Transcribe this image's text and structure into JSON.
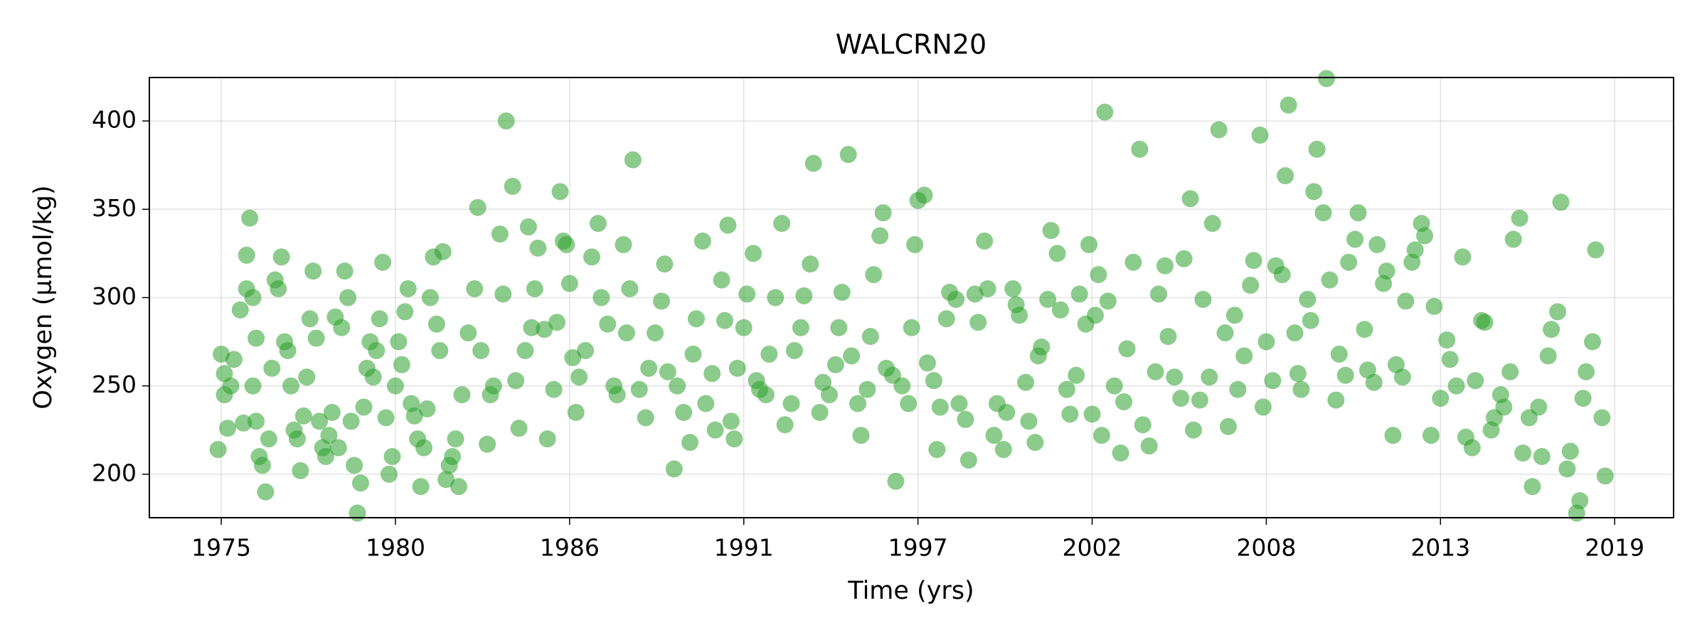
{
  "chart_data": {
    "type": "scatter",
    "title": "WALCRN20",
    "xlabel": "Time (yrs)",
    "ylabel": "Oxygen (µmol/kg)",
    "color": "#2ca02c",
    "grid": true,
    "xlim": [
      1972.73,
      2020.86
    ],
    "ylim": [
      175.4,
      424.6
    ],
    "xticks": [
      1975,
      {
        "value": 1980.5,
        "label": "1980"
      },
      1986,
      {
        "value": 1991.5,
        "label": "1991"
      },
      1997,
      {
        "value": 2002.5,
        "label": "2002"
      },
      2008,
      {
        "value": 2013.5,
        "label": "2013"
      },
      2019
    ],
    "yticks": [
      200,
      250,
      300,
      350,
      400
    ],
    "x": [
      1974.9,
      1975.0,
      1975.1,
      1975.1,
      1975.2,
      1975.3,
      1975.4,
      1975.6,
      1975.7,
      1975.8,
      1975.8,
      1975.9,
      1976.0,
      1976.0,
      1976.1,
      1976.1,
      1976.2,
      1976.3,
      1976.4,
      1976.5,
      1976.6,
      1976.7,
      1976.8,
      1976.9,
      1977.0,
      1977.1,
      1977.2,
      1977.3,
      1977.4,
      1977.5,
      1977.6,
      1977.7,
      1977.8,
      1977.9,
      1978.0,
      1978.1,
      1978.2,
      1978.3,
      1978.4,
      1978.5,
      1978.6,
      1978.7,
      1978.8,
      1978.9,
      1979.0,
      1979.1,
      1979.2,
      1979.3,
      1979.4,
      1979.5,
      1979.6,
      1979.7,
      1979.8,
      1979.9,
      1980.0,
      1980.1,
      1980.2,
      1980.3,
      1980.4,
      1980.5,
      1980.6,
      1980.7,
      1980.8,
      1980.9,
      1981.0,
      1981.1,
      1981.2,
      1981.3,
      1981.4,
      1981.5,
      1981.6,
      1981.7,
      1981.8,
      1981.9,
      1982.0,
      1982.1,
      1982.2,
      1982.3,
      1982.4,
      1982.5,
      1982.6,
      1982.8,
      1983.0,
      1983.1,
      1983.2,
      1983.4,
      1983.5,
      1983.6,
      1983.8,
      1983.9,
      1984.0,
      1984.2,
      1984.3,
      1984.4,
      1984.6,
      1984.7,
      1984.8,
      1984.9,
      1985.0,
      1985.2,
      1985.3,
      1985.5,
      1985.6,
      1985.7,
      1985.8,
      1985.9,
      1986.0,
      1986.1,
      1986.2,
      1986.3,
      1986.5,
      1986.7,
      1986.9,
      1987.0,
      1987.2,
      1987.4,
      1987.5,
      1987.7,
      1987.8,
      1987.9,
      1988.0,
      1988.2,
      1988.4,
      1988.5,
      1988.7,
      1988.9,
      1989.0,
      1989.1,
      1989.3,
      1989.4,
      1989.6,
      1989.8,
      1989.9,
      1990.0,
      1990.2,
      1990.3,
      1990.5,
      1990.6,
      1990.8,
      1990.9,
      1991.0,
      1991.1,
      1991.2,
      1991.3,
      1991.5,
      1991.6,
      1991.8,
      1991.9,
      1992.0,
      1992.2,
      1992.3,
      1992.5,
      1992.7,
      1992.8,
      1993.0,
      1993.1,
      1993.3,
      1993.4,
      1993.6,
      1993.7,
      1993.9,
      1994.0,
      1994.2,
      1994.4,
      1994.5,
      1994.6,
      1994.8,
      1994.9,
      1995.1,
      1995.2,
      1995.4,
      1995.5,
      1995.6,
      1995.8,
      1995.9,
      1996.0,
      1996.2,
      1996.3,
      1996.5,
      1996.7,
      1996.8,
      1996.9,
      1997.0,
      1997.2,
      1997.3,
      1997.5,
      1997.6,
      1997.7,
      1997.9,
      1998.0,
      1998.2,
      1998.3,
      1998.5,
      1998.6,
      1998.8,
      1998.9,
      1999.1,
      1999.2,
      1999.4,
      1999.5,
      1999.7,
      1999.8,
      2000.0,
      2000.1,
      2000.2,
      2000.4,
      2000.5,
      2000.7,
      2000.8,
      2000.9,
      2001.1,
      2001.2,
      2001.4,
      2001.5,
      2001.7,
      2001.8,
      2002.0,
      2002.1,
      2002.3,
      2002.4,
      2002.5,
      2002.6,
      2002.7,
      2002.8,
      2002.9,
      2003.0,
      2003.2,
      2003.4,
      2003.5,
      2003.6,
      2003.8,
      2004.0,
      2004.1,
      2004.3,
      2004.5,
      2004.6,
      2004.8,
      2004.9,
      2005.1,
      2005.3,
      2005.4,
      2005.6,
      2005.7,
      2005.9,
      2006.0,
      2006.2,
      2006.3,
      2006.5,
      2006.7,
      2006.8,
      2007.0,
      2007.1,
      2007.3,
      2007.5,
      2007.6,
      2007.8,
      2007.9,
      2008.0,
      2008.2,
      2008.3,
      2008.5,
      2008.6,
      2008.7,
      2008.9,
      2009.0,
      2009.1,
      2009.3,
      2009.4,
      2009.5,
      2009.6,
      2009.8,
      2009.9,
      2010.0,
      2010.2,
      2010.3,
      2010.5,
      2010.6,
      2010.8,
      2010.9,
      2011.1,
      2011.2,
      2011.4,
      2011.5,
      2011.7,
      2011.8,
      2012.0,
      2012.1,
      2012.3,
      2012.4,
      2012.6,
      2012.7,
      2012.9,
      2013.0,
      2013.2,
      2013.3,
      2013.5,
      2013.7,
      2013.8,
      2014.0,
      2014.2,
      2014.3,
      2014.5,
      2014.6,
      2014.8,
      2014.9,
      2015.1,
      2015.2,
      2015.4,
      2015.5,
      2015.7,
      2015.8,
      2016.0,
      2016.1,
      2016.3,
      2016.4,
      2016.6,
      2016.7,
      2016.9,
      2017.0,
      2017.2,
      2017.3,
      2017.5,
      2017.6,
      2017.8,
      2017.9,
      2018.0,
      2018.1,
      2018.3,
      2018.4,
      2018.6,
      2018.7
    ],
    "values": [
      214,
      268,
      245,
      257,
      226,
      250,
      265,
      293,
      229,
      324,
      305,
      345,
      300,
      250,
      277,
      230,
      210,
      205,
      190,
      220,
      260,
      310,
      305,
      323,
      275,
      270,
      250,
      225,
      220,
      202,
      233,
      255,
      288,
      315,
      277,
      230,
      215,
      210,
      222,
      235,
      289,
      215,
      283,
      315,
      300,
      230,
      205,
      178,
      195,
      238,
      260,
      275,
      255,
      270,
      288,
      320,
      232,
      200,
      210,
      250,
      275,
      262,
      292,
      305,
      240,
      233,
      220,
      193,
      215,
      237,
      300,
      323,
      285,
      270,
      326,
      197,
      205,
      210,
      220,
      193,
      245,
      280,
      305,
      351,
      270,
      217,
      245,
      250,
      336,
      302,
      400,
      363,
      253,
      226,
      270,
      340,
      283,
      305,
      328,
      282,
      220,
      248,
      286,
      360,
      332,
      330,
      308,
      266,
      235,
      255,
      270,
      323,
      342,
      300,
      285,
      250,
      245,
      330,
      280,
      305,
      378,
      248,
      232,
      260,
      280,
      298,
      319,
      258,
      203,
      250,
      235,
      218,
      268,
      288,
      332,
      240,
      257,
      225,
      310,
      287,
      341,
      230,
      220,
      260,
      283,
      302,
      325,
      253,
      248,
      245,
      268,
      300,
      342,
      228,
      240,
      270,
      283,
      301,
      319,
      376,
      235,
      252,
      245,
      262,
      283,
      303,
      381,
      267,
      240,
      222,
      248,
      278,
      313,
      335,
      348,
      260,
      256,
      196,
      250,
      240,
      283,
      330,
      355,
      358,
      263,
      253,
      214,
      238,
      288,
      303,
      299,
      240,
      231,
      208,
      302,
      286,
      332,
      305,
      222,
      240,
      214,
      235,
      305,
      296,
      290,
      252,
      230,
      218,
      267,
      272,
      299,
      338,
      325,
      293,
      248,
      234,
      256,
      302,
      285,
      330,
      234,
      290,
      313,
      222,
      405,
      298,
      250,
      212,
      241,
      271,
      320,
      384,
      228,
      216,
      258,
      302,
      318,
      278,
      255,
      243,
      322,
      356,
      225,
      242,
      299,
      255,
      342,
      395,
      280,
      227,
      290,
      248,
      267,
      307,
      321,
      392,
      238,
      275,
      253,
      318,
      313,
      369,
      409,
      280,
      257,
      248,
      299,
      287,
      360,
      384,
      348,
      424,
      310,
      242,
      268,
      256,
      320,
      333,
      348,
      282,
      259,
      252,
      330,
      308,
      315,
      222,
      262,
      255,
      298,
      320,
      327,
      342,
      335,
      222,
      295,
      243,
      276,
      265,
      250,
      323,
      221,
      215,
      253,
      287,
      286,
      225,
      232,
      245,
      238,
      258,
      333,
      345,
      212,
      232,
      193,
      238,
      210,
      267,
      282,
      292,
      354,
      203,
      213,
      178,
      185,
      243,
      258,
      275,
      327,
      232,
      199
    ]
  }
}
